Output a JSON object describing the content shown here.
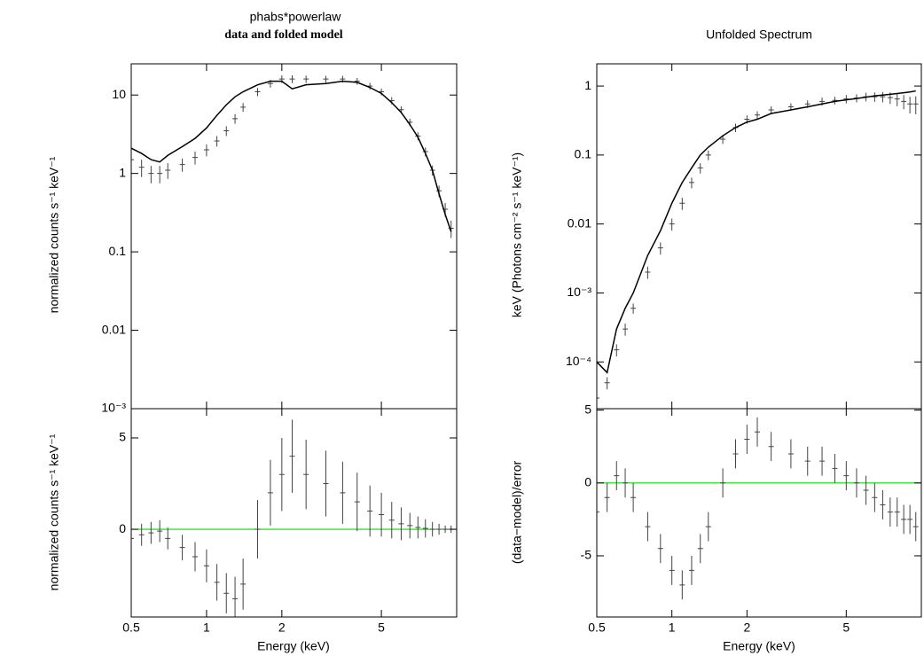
{
  "chart_data": [
    {
      "type": "line",
      "title": "phabs*powerlaw",
      "subtitle": "data and folded model",
      "ylabel": "normalized counts s⁻¹ keV⁻¹",
      "x": [
        0.5,
        0.55,
        0.6,
        0.65,
        0.7,
        0.8,
        0.9,
        1.0,
        1.1,
        1.2,
        1.3,
        1.4,
        1.6,
        1.8,
        2.0,
        2.2,
        2.5,
        3.0,
        3.5,
        4.0,
        4.5,
        5.0,
        5.5,
        6.0,
        6.5,
        7.0,
        7.5,
        8.0,
        8.5,
        9.0,
        9.5
      ],
      "series": [
        {
          "color": "#444444",
          "values": [
            1.5,
            1.2,
            1.0,
            1.0,
            1.1,
            1.3,
            1.6,
            2.0,
            2.6,
            3.5,
            5,
            7,
            11,
            14,
            16,
            16,
            16,
            16,
            16,
            15,
            13,
            11,
            8.5,
            6.5,
            4.5,
            3,
            1.9,
            1.1,
            0.6,
            0.35,
            0.2
          ],
          "errors": [
            0.4,
            0.3,
            0.25,
            0.25,
            0.25,
            0.25,
            0.3,
            0.35,
            0.4,
            0.5,
            0.7,
            0.9,
            1.3,
            1.6,
            1.8,
            1.8,
            1.7,
            1.6,
            1.6,
            1.5,
            1.3,
            1.1,
            0.9,
            0.7,
            0.5,
            0.35,
            0.25,
            0.16,
            0.1,
            0.07,
            0.05
          ]
        },
        {
          "color": "#000000",
          "values": [
            2.1,
            1.8,
            1.5,
            1.4,
            1.7,
            2.2,
            2.8,
            3.8,
            5.5,
            7.5,
            9.5,
            11,
            13.5,
            15,
            15,
            12,
            13.5,
            14,
            15,
            14.5,
            12.5,
            10.5,
            8,
            6,
            4.2,
            2.9,
            1.8,
            1.1,
            0.55,
            0.3,
            0.18
          ]
        }
      ],
      "xlim": [
        0.5,
        10
      ],
      "ylim": [
        0.001,
        25
      ],
      "log_x": true,
      "log_y": true,
      "yticks": [
        {
          "value": 0.001,
          "label": "10⁻³"
        },
        0.01,
        0.1,
        1,
        10
      ]
    },
    {
      "type": "line",
      "xlabel": "Energy (keV)",
      "ylabel": "normalized counts s⁻¹ keV⁻¹",
      "x": [
        0.5,
        0.55,
        0.6,
        0.65,
        0.7,
        0.8,
        0.9,
        1.0,
        1.1,
        1.2,
        1.3,
        1.4,
        1.6,
        1.8,
        2.0,
        2.2,
        2.5,
        3.0,
        3.5,
        4.0,
        4.5,
        5.0,
        5.5,
        6.0,
        6.5,
        7.0,
        7.5,
        8.0,
        8.5,
        9.0,
        9.5
      ],
      "series": [
        {
          "color": "#444444",
          "values": [
            -0.5,
            -0.3,
            -0.2,
            -0.1,
            -0.5,
            -1,
            -1.5,
            -2,
            -2.9,
            -3.5,
            -3.8,
            -3,
            0,
            2,
            3,
            4,
            3,
            2.5,
            2,
            1.5,
            1,
            0.8,
            0.5,
            0.3,
            0.2,
            0.1,
            0.05,
            0,
            0,
            0,
            0
          ],
          "errors": [
            0.6,
            0.6,
            0.6,
            0.6,
            0.6,
            0.7,
            0.8,
            0.9,
            1.0,
            1.1,
            1.2,
            1.4,
            1.6,
            1.8,
            2.0,
            2.0,
            1.9,
            1.8,
            1.7,
            1.6,
            1.4,
            1.2,
            1.0,
            0.9,
            0.7,
            0.6,
            0.5,
            0.4,
            0.3,
            0.2,
            0.2
          ]
        }
      ],
      "reference_line": {
        "value": 0,
        "color": "#00e000"
      },
      "xlim": [
        0.5,
        10
      ],
      "ylim": [
        -4.8,
        6.6
      ],
      "log_x": true,
      "log_y": false,
      "xticks": [
        0.5,
        1,
        2,
        5
      ],
      "yticks": [
        0,
        5
      ]
    },
    {
      "type": "line",
      "title": "Unfolded Spectrum",
      "ylabel": "keV (Photons cm⁻² s⁻¹ keV⁻¹)",
      "x": [
        0.5,
        0.55,
        0.6,
        0.65,
        0.7,
        0.8,
        0.9,
        1.0,
        1.1,
        1.2,
        1.3,
        1.4,
        1.6,
        1.8,
        2.0,
        2.2,
        2.5,
        3.0,
        3.5,
        4.0,
        4.5,
        5.0,
        5.5,
        6.0,
        6.5,
        7.0,
        7.5,
        8.0,
        8.5,
        9.0,
        9.5
      ],
      "series": [
        {
          "color": "#444444",
          "values": [
            3e-05,
            5e-05,
            0.00015,
            0.0003,
            0.0006,
            0.002,
            0.0045,
            0.01,
            0.02,
            0.04,
            0.065,
            0.1,
            0.17,
            0.25,
            0.33,
            0.38,
            0.45,
            0.5,
            0.55,
            0.6,
            0.62,
            0.65,
            0.67,
            0.7,
            0.7,
            0.7,
            0.68,
            0.65,
            0.6,
            0.55,
            0.55
          ],
          "errors": [
            1e-05,
            1e-05,
            3e-05,
            6e-05,
            0.0001,
            0.0004,
            0.0009,
            0.002,
            0.004,
            0.007,
            0.011,
            0.016,
            0.025,
            0.035,
            0.045,
            0.05,
            0.06,
            0.06,
            0.07,
            0.08,
            0.08,
            0.09,
            0.09,
            0.1,
            0.11,
            0.12,
            0.13,
            0.14,
            0.14,
            0.15,
            0.16
          ]
        },
        {
          "color": "#000000",
          "values": [
            0.0001,
            7e-05,
            0.0003,
            0.0006,
            0.001,
            0.0035,
            0.008,
            0.02,
            0.04,
            0.065,
            0.1,
            0.13,
            0.19,
            0.25,
            0.3,
            0.33,
            0.4,
            0.45,
            0.5,
            0.55,
            0.6,
            0.63,
            0.66,
            0.69,
            0.72,
            0.74,
            0.76,
            0.78,
            0.8,
            0.82,
            0.85
          ]
        }
      ],
      "xlim": [
        0.5,
        10
      ],
      "ylim": [
        2.1e-05,
        2.1
      ],
      "log_x": true,
      "log_y": true,
      "yticks": [
        {
          "value": 0.0001,
          "label": "10⁻⁴"
        },
        {
          "value": 0.001,
          "label": "10⁻³"
        },
        0.01,
        0.1,
        1
      ]
    },
    {
      "type": "line",
      "xlabel": "Energy (keV)",
      "ylabel": "(data−model)/error",
      "x": [
        0.5,
        0.55,
        0.6,
        0.65,
        0.7,
        0.8,
        0.9,
        1.0,
        1.1,
        1.2,
        1.3,
        1.4,
        1.6,
        1.8,
        2.0,
        2.2,
        2.5,
        3.0,
        3.5,
        4.0,
        4.5,
        5.0,
        5.5,
        6.0,
        6.5,
        7.0,
        7.5,
        8.0,
        8.5,
        9.0,
        9.5
      ],
      "series": [
        {
          "color": "#444444",
          "values": [
            -2,
            -1,
            0.5,
            0,
            -1,
            -3,
            -4.5,
            -6,
            -7,
            -6,
            -4.5,
            -3,
            0,
            2,
            3,
            3.5,
            2.5,
            2,
            1.5,
            1.5,
            1,
            0.5,
            0,
            -0.5,
            -1,
            -1.5,
            -2,
            -2,
            -2.5,
            -2.5,
            -3
          ],
          "errors": [
            1,
            1,
            1,
            1,
            1,
            1,
            1,
            1,
            1,
            1,
            1,
            1,
            1,
            1,
            1,
            1,
            1,
            1,
            1,
            1,
            1,
            1,
            1,
            1,
            1,
            1,
            1,
            1,
            1,
            1,
            1
          ]
        }
      ],
      "reference_line": {
        "value": 0,
        "color": "#00e000"
      },
      "xlim": [
        0.5,
        10
      ],
      "ylim": [
        -9.2,
        5.1
      ],
      "log_x": true,
      "log_y": false,
      "xticks": [
        0.5,
        1,
        2,
        5
      ],
      "yticks": [
        -5,
        0,
        5
      ]
    }
  ]
}
